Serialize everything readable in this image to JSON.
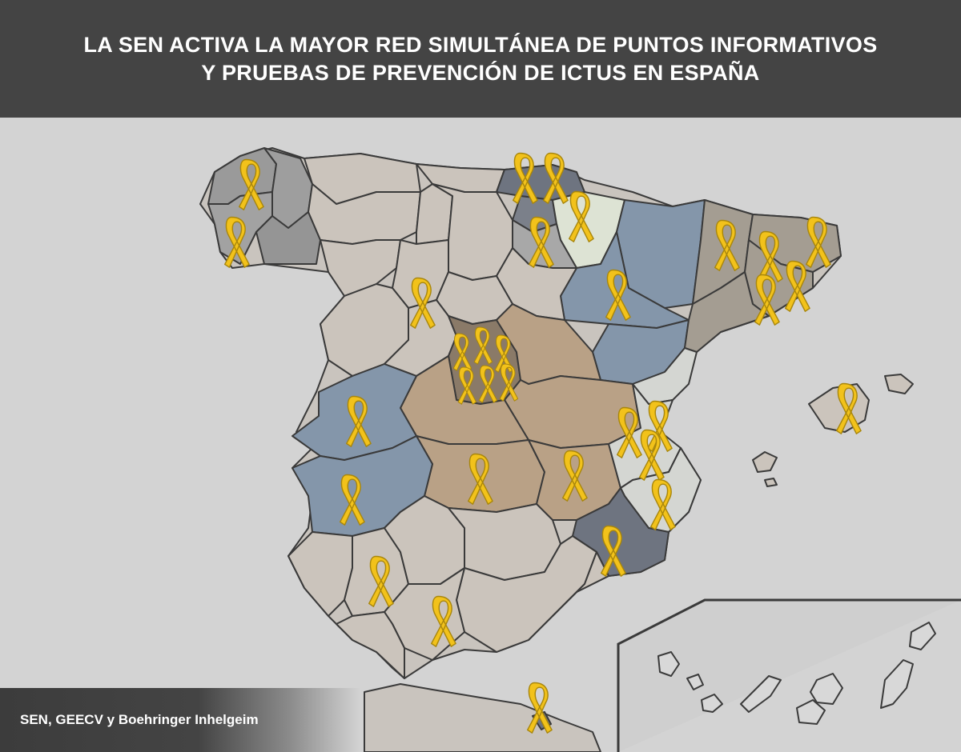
{
  "title": {
    "line1": "LA SEN ACTIVA LA MAYOR RED SIMULTÁNEA DE PUNTOS INFORMATIVOS",
    "line2": "Y PRUEBAS DE PREVENCIÓN DE ICTUS EN ESPAÑA"
  },
  "credit": "SEN, GEECV y Boehringer Inhelgeim",
  "colors": {
    "header": "#444444",
    "background": "#d3d3d3",
    "ribbon": "#f2c21b",
    "ribbon_outline": "#a8860c",
    "grey_regions": "#9a9a9a",
    "beige_regions": "#cbc4bc",
    "blue_regions": "#8496aa",
    "tan_regions": "#b9a186",
    "slate_regions": "#6e7480",
    "taupe_regions": "#a49d92",
    "light_regions": "#dde3d4"
  },
  "icons": [
    "awareness-ribbon-icon"
  ],
  "ribbon_count": 31
}
